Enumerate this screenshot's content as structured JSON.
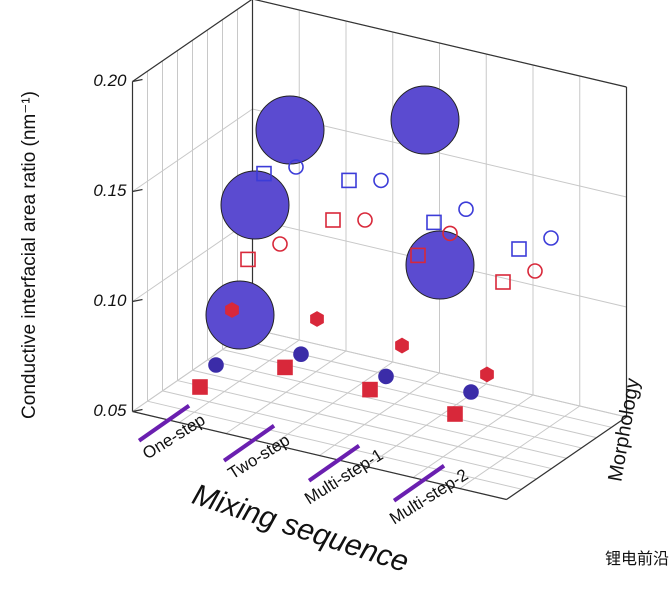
{
  "chart_data": {
    "type": "scatter3d",
    "y_label": "Conductive interfacial area ratio (nm⁻¹)",
    "x_label": "Mixing sequence",
    "z_label": "Morphology",
    "categories": [
      "One-step",
      "Two-step",
      "Multi-step-1",
      "Multi-step-2"
    ],
    "ylim": [
      0.05,
      0.2
    ],
    "yticks": [
      {
        "value": 0.05,
        "label": "0.05"
      },
      {
        "value": 0.1,
        "label": "0.10"
      },
      {
        "value": 0.15,
        "label": "0.15"
      },
      {
        "value": 0.2,
        "label": "0.20"
      }
    ],
    "grid": true,
    "series": [
      {
        "color": "#d8283a",
        "marker": "square",
        "filled": true,
        "values": [
          0.065,
          0.083,
          0.082,
          0.08
        ]
      },
      {
        "color": "#3b2ca8",
        "marker": "circle",
        "filled": true,
        "values": [
          0.07,
          0.084,
          0.083,
          0.085
        ]
      },
      {
        "color": "#d8283a",
        "marker": "hexagon",
        "filled": true,
        "values": [
          0.09,
          0.095,
          0.092,
          0.088
        ]
      },
      {
        "color": "#d8283a",
        "marker": "square",
        "filled": false,
        "values": [
          0.108,
          0.135,
          0.128,
          0.125
        ]
      },
      {
        "color": "#3c3cd8",
        "marker": "square",
        "filled": false,
        "values": [
          0.142,
          0.148,
          0.138,
          0.135
        ]
      },
      {
        "color": "#d8283a",
        "marker": "circle",
        "filled": false,
        "values": [
          0.105,
          0.125,
          0.128,
          0.12
        ]
      },
      {
        "color": "#3c3cd8",
        "marker": "circle",
        "filled": false,
        "values": [
          0.135,
          0.138,
          0.134,
          0.13
        ]
      }
    ]
  },
  "watermark": "锂电前沿"
}
